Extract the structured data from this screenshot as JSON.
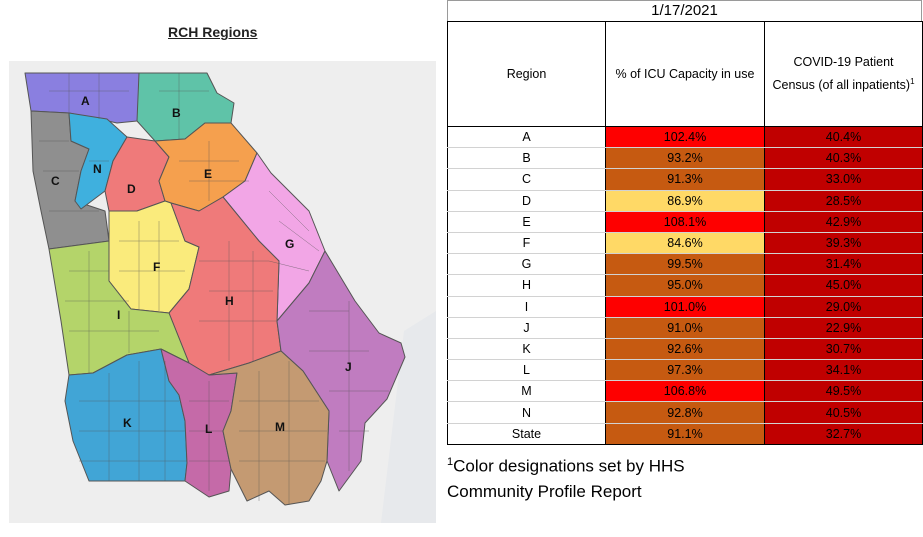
{
  "map": {
    "title": "RCH Regions",
    "regions": [
      {
        "label": "A",
        "color": "#8a7fe0"
      },
      {
        "label": "B",
        "color": "#5fc3a8"
      },
      {
        "label": "C",
        "color": "#8f8f8f"
      },
      {
        "label": "N",
        "color": "#3fb0de"
      },
      {
        "label": "D",
        "color": "#ef7a7a"
      },
      {
        "label": "E",
        "color": "#f5a04e"
      },
      {
        "label": "F",
        "color": "#faeb7c"
      },
      {
        "label": "G",
        "color": "#f2a6e6"
      },
      {
        "label": "H",
        "color": "#ef7a7a"
      },
      {
        "label": "I",
        "color": "#b4d46a"
      },
      {
        "label": "J",
        "color": "#c07cc0"
      },
      {
        "label": "K",
        "color": "#41a5d6"
      },
      {
        "label": "L",
        "color": "#c56aa8"
      },
      {
        "label": "M",
        "color": "#c49a72"
      }
    ]
  },
  "table": {
    "date": "1/17/2021",
    "headers": {
      "region": "Region",
      "icu": "% of ICU Capacity in use",
      "census": "COVID-19 Patient Census (of all inpatients)",
      "census_sup": "1"
    },
    "rows": [
      {
        "region": "A",
        "icu": "102.4%",
        "icu_color": "#fe0000",
        "census": "40.4%",
        "census_color": "#c00000"
      },
      {
        "region": "B",
        "icu": "93.2%",
        "icu_color": "#c65a11",
        "census": "40.3%",
        "census_color": "#c00000"
      },
      {
        "region": "C",
        "icu": "91.3%",
        "icu_color": "#c65a11",
        "census": "33.0%",
        "census_color": "#c00000"
      },
      {
        "region": "D",
        "icu": "86.9%",
        "icu_color": "#ffd966",
        "census": "28.5%",
        "census_color": "#c00000"
      },
      {
        "region": "E",
        "icu": "108.1%",
        "icu_color": "#fe0000",
        "census": "42.9%",
        "census_color": "#c00000"
      },
      {
        "region": "F",
        "icu": "84.6%",
        "icu_color": "#ffd966",
        "census": "39.3%",
        "census_color": "#c00000"
      },
      {
        "region": "G",
        "icu": "99.5%",
        "icu_color": "#c65a11",
        "census": "31.4%",
        "census_color": "#c00000"
      },
      {
        "region": "H",
        "icu": "95.0%",
        "icu_color": "#c65a11",
        "census": "45.0%",
        "census_color": "#c00000"
      },
      {
        "region": "I",
        "icu": "101.0%",
        "icu_color": "#fe0000",
        "census": "29.0%",
        "census_color": "#c00000"
      },
      {
        "region": "J",
        "icu": "91.0%",
        "icu_color": "#c65a11",
        "census": "22.9%",
        "census_color": "#c00000"
      },
      {
        "region": "K",
        "icu": "92.6%",
        "icu_color": "#c65a11",
        "census": "30.7%",
        "census_color": "#c00000"
      },
      {
        "region": "L",
        "icu": "97.3%",
        "icu_color": "#c65a11",
        "census": "34.1%",
        "census_color": "#c00000"
      },
      {
        "region": "M",
        "icu": "106.8%",
        "icu_color": "#fe0000",
        "census": "49.5%",
        "census_color": "#c00000"
      },
      {
        "region": "N",
        "icu": "92.8%",
        "icu_color": "#c65a11",
        "census": "40.5%",
        "census_color": "#c00000"
      }
    ],
    "state": {
      "region": "State",
      "icu": "91.1%",
      "icu_color": "#c65a11",
      "census": "32.7%",
      "census_color": "#c00000"
    }
  },
  "footnote": {
    "sup": "1",
    "text": "Color designations set by HHS Community Profile Report"
  }
}
